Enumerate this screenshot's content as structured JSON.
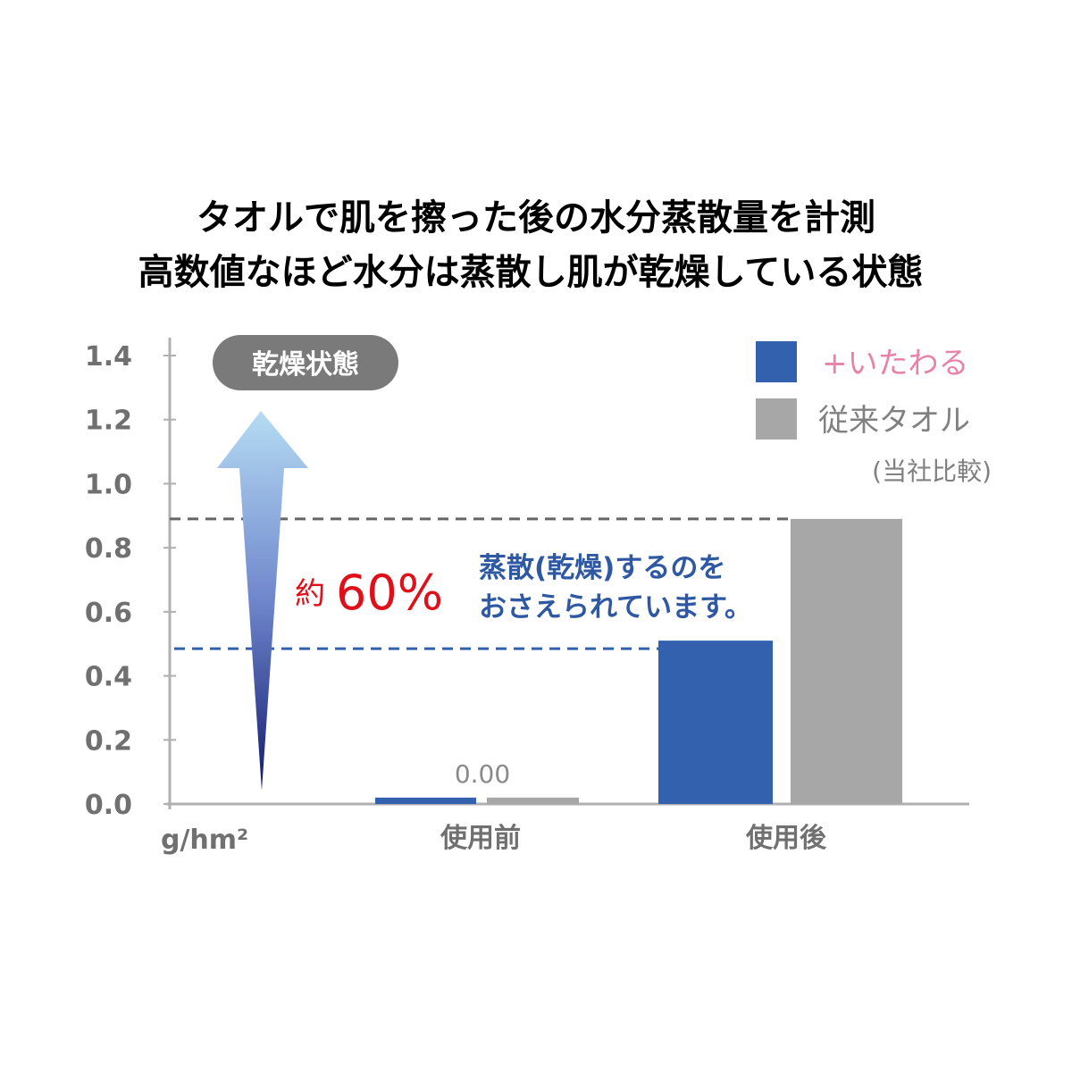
{
  "chart_data": {
    "type": "bar",
    "title_lines": [
      "タオルで肌を擦った後の水分蒸散量を計測",
      "高数値なほど水分は蒸散し肌が乾燥している状態"
    ],
    "title_color": "#e883a8",
    "ylabel": "g/hm²",
    "ylim": [
      0,
      1.4
    ],
    "yticks": [
      "0.0",
      "0.2",
      "0.4",
      "0.6",
      "0.8",
      "1.0",
      "1.2",
      "1.4"
    ],
    "grid": false,
    "categories": [
      "使用前",
      "使用後"
    ],
    "series": [
      {
        "name": "+いたわる",
        "values": [
          0.02,
          0.51
        ],
        "color": "#3461ad"
      },
      {
        "name": "従来タオル",
        "values": [
          0.02,
          0.89
        ],
        "color": "#a7a7a7"
      }
    ],
    "legend_position": "top-right",
    "legend_note": "(当社比較)",
    "data_label": "0.00",
    "reference_lines": [
      {
        "value": 0.89,
        "color": "#666666",
        "style": "dashed"
      },
      {
        "value": 0.485,
        "color": "#3461ad",
        "style": "dashed"
      }
    ],
    "annotations": {
      "badge": "乾燥状態",
      "reduction_prefix": "約",
      "reduction_value": "60%",
      "reduction_color": "#e0101a",
      "message_lines": [
        "蒸散(乾燥)するのを",
        "おさえられています。"
      ],
      "message_color": "#2f58a3"
    }
  }
}
